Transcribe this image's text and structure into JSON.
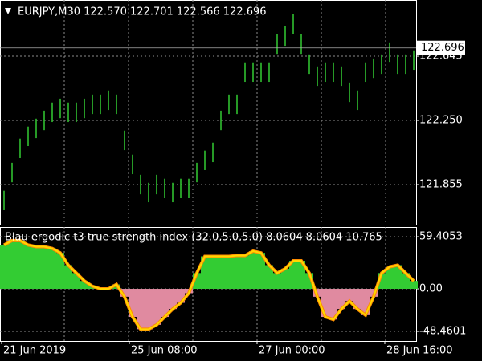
{
  "chart_data": [
    {
      "type": "ohlc",
      "title": "EURJPY,M30  122.570 122.701 122.566 122.696",
      "color": "#33cc33",
      "high": [
        121.817,
        121.989,
        122.138,
        122.212,
        122.261,
        122.31,
        122.36,
        122.384,
        122.36,
        122.36,
        122.384,
        122.409,
        122.409,
        122.434,
        122.409,
        122.187,
        122.039,
        121.915,
        121.866,
        121.915,
        121.891,
        121.866,
        121.891,
        121.891,
        121.989,
        122.064,
        122.113,
        122.31,
        122.409,
        122.409,
        122.607,
        122.607,
        122.607,
        122.607,
        122.779,
        122.829,
        122.903,
        122.779,
        122.656,
        122.582,
        122.607,
        122.607,
        122.582,
        122.483,
        122.434,
        122.607,
        122.631,
        122.656,
        122.73,
        122.656,
        122.656,
        122.681
      ],
      "low": [
        121.697,
        121.869,
        122.018,
        122.092,
        122.141,
        122.19,
        122.24,
        122.264,
        122.24,
        122.24,
        122.264,
        122.289,
        122.289,
        122.314,
        122.289,
        122.067,
        121.919,
        121.795,
        121.746,
        121.795,
        121.771,
        121.746,
        121.771,
        121.771,
        121.869,
        121.944,
        121.993,
        122.19,
        122.289,
        122.289,
        122.487,
        122.487,
        122.487,
        122.487,
        122.659,
        122.709,
        122.783,
        122.659,
        122.536,
        122.462,
        122.487,
        122.487,
        122.462,
        122.363,
        122.314,
        122.487,
        122.511,
        122.536,
        122.61,
        122.536,
        122.536,
        122.561
      ],
      "ylim": [
        121.608,
        122.991
      ],
      "yticks": [
        {
          "value": 121.855,
          "label": "121.855"
        },
        {
          "value": 122.25,
          "label": "122.250"
        },
        {
          "value": 122.645,
          "label": "122.645"
        }
      ],
      "last_price": 122.696,
      "grid": true
    },
    {
      "type": "histogram-line",
      "title": "Blau ergodic t3 true strength index (32.0,5.0,5.0) 8.0604 8.0604 10.765",
      "values": [
        50,
        55,
        55,
        50,
        48,
        48,
        46,
        41,
        27,
        18,
        9,
        3,
        0,
        0,
        5,
        -9,
        -32,
        -46,
        -46,
        -41,
        -32,
        -23,
        -16,
        -5,
        18,
        37,
        37,
        37,
        37,
        38,
        38,
        43,
        41,
        27,
        18,
        23,
        32,
        32,
        18,
        -9,
        -32,
        -35,
        -23,
        -14,
        -23,
        -30,
        -9,
        18,
        25,
        27,
        18,
        9
      ],
      "up_color": "#33cc33",
      "down_color": "#e08aa0",
      "line_color": "#ffd700",
      "line_edge_color": "#ff8c00",
      "ylim": [
        -59.4,
        70.4
      ],
      "yticks": [
        {
          "value": 59.4053,
          "label": "59.4053"
        },
        {
          "value": 0,
          "label": "0.00"
        },
        {
          "value": -48.4601,
          "label": "-48.4601"
        }
      ],
      "x_labels": [
        "21 Jun 2019",
        "25 Jun 08:00",
        "27 Jun 00:00",
        "28 Jun 16:00"
      ],
      "grid": true
    }
  ]
}
